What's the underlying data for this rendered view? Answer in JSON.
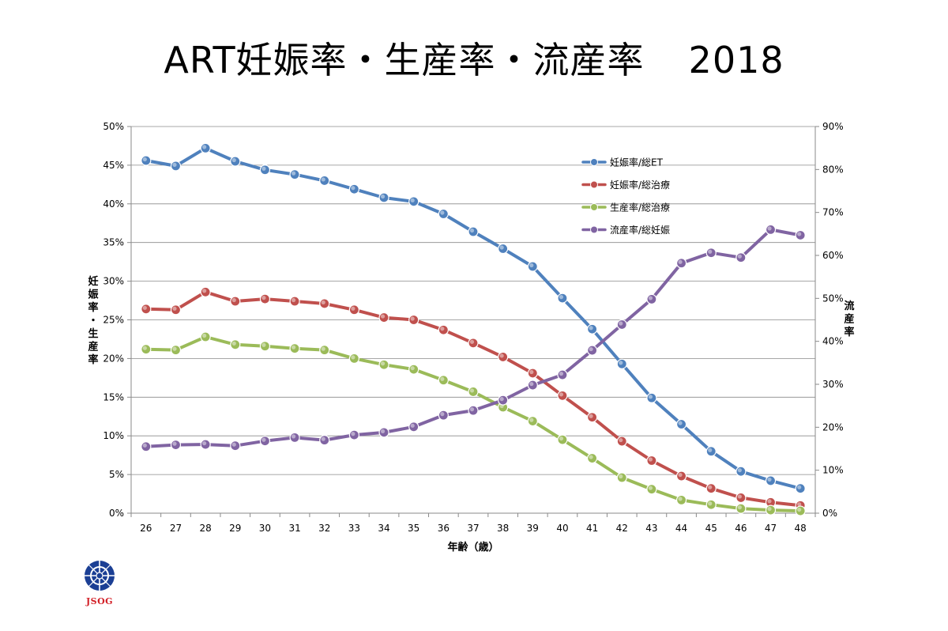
{
  "page": {
    "title": "ART妊娠率・生産率・流産率",
    "year": "2018",
    "logo_text": "JSOG",
    "logo_color": "#d21f26"
  },
  "chart_data": {
    "type": "line",
    "xlabel": "年齢（歳）",
    "ylabel_left": "妊娠率・生産率",
    "ylabel_right": "流産率",
    "x": [
      "26",
      "27",
      "28",
      "29",
      "30",
      "31",
      "32",
      "33",
      "34",
      "35",
      "36",
      "37",
      "38",
      "39",
      "40",
      "41",
      "42",
      "43",
      "44",
      "45",
      "46",
      "47",
      "48"
    ],
    "ylim_left": [
      0,
      50
    ],
    "ylim_right": [
      0,
      90
    ],
    "yticks_left": [
      "0%",
      "5%",
      "10%",
      "15%",
      "20%",
      "25%",
      "30%",
      "35%",
      "40%",
      "45%",
      "50%"
    ],
    "yticks_right": [
      "0%",
      "10%",
      "20%",
      "30%",
      "40%",
      "50%",
      "60%",
      "70%",
      "80%",
      "90%"
    ],
    "grid": true,
    "legend_position": "top-right",
    "series": [
      {
        "name": "妊娠率/総ET",
        "axis": "left",
        "color": "#4f81bd",
        "values": [
          45.6,
          44.9,
          47.2,
          45.5,
          44.4,
          43.8,
          43.0,
          41.9,
          40.8,
          40.3,
          38.7,
          36.4,
          34.2,
          31.9,
          27.8,
          23.8,
          19.3,
          14.9,
          11.5,
          8.0,
          5.4,
          4.2,
          3.2
        ]
      },
      {
        "name": "妊娠率/総治療",
        "axis": "left",
        "color": "#c0504d",
        "values": [
          26.4,
          26.3,
          28.6,
          27.4,
          27.7,
          27.4,
          27.1,
          26.3,
          25.3,
          25.0,
          23.7,
          22.0,
          20.2,
          18.1,
          15.2,
          12.4,
          9.3,
          6.8,
          4.8,
          3.2,
          2.0,
          1.4,
          1.0
        ]
      },
      {
        "name": "生産率/総治療",
        "axis": "left",
        "color": "#9bbb59",
        "values": [
          21.2,
          21.1,
          22.8,
          21.8,
          21.6,
          21.3,
          21.1,
          20.0,
          19.2,
          18.6,
          17.2,
          15.7,
          13.7,
          11.9,
          9.5,
          7.1,
          4.6,
          3.1,
          1.7,
          1.1,
          0.6,
          0.4,
          0.3
        ]
      },
      {
        "name": "流産率/総妊娠",
        "axis": "right",
        "color": "#8064a2",
        "values": [
          15.5,
          15.9,
          16.0,
          15.7,
          16.8,
          17.6,
          17.0,
          18.2,
          18.8,
          20.1,
          22.8,
          23.9,
          26.3,
          29.8,
          32.2,
          37.9,
          43.9,
          49.8,
          58.2,
          60.6,
          59.5,
          66.0,
          64.7
        ]
      }
    ]
  }
}
